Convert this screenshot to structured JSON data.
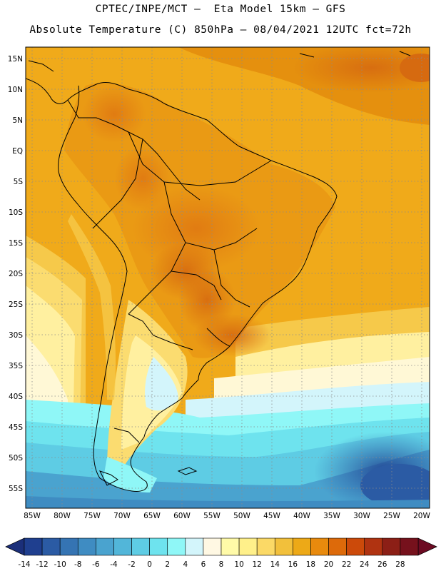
{
  "header": {
    "line1": "CPTEC/INPE/MCT –  Eta Model 15km – GFS",
    "line2": "Absolute Temperature (C) 850hPa – 08/04/2021 12UTC fct=72h"
  },
  "axes": {
    "lat_labels": [
      "15N",
      "10N",
      "5N",
      "EQ",
      "5S",
      "10S",
      "15S",
      "20S",
      "25S",
      "30S",
      "35S",
      "40S",
      "45S",
      "50S",
      "55S"
    ],
    "lon_labels": [
      "85W",
      "80W",
      "75W",
      "70W",
      "65W",
      "60W",
      "55W",
      "50W",
      "45W",
      "40W",
      "35W",
      "30W",
      "25W",
      "20W"
    ]
  },
  "colorbar": {
    "labels": [
      "-14",
      "-12",
      "-10",
      "-8",
      "-6",
      "-4",
      "-2",
      "0",
      "2",
      "4",
      "6",
      "8",
      "10",
      "12",
      "14",
      "16",
      "18",
      "20",
      "22",
      "24",
      "26",
      "28"
    ],
    "colors": [
      "#1f3f8f",
      "#2b5ba4",
      "#3574b3",
      "#3f8cc2",
      "#4aa3cf",
      "#52b6d9",
      "#5ecce4",
      "#6ee3ee",
      "#8ff7f7",
      "#d3f5fb",
      "#fff8e3",
      "#fffaa8",
      "#fff08a",
      "#fbd966",
      "#f2c03b",
      "#eda917",
      "#e88a0d",
      "#dd6a0a",
      "#cc4a0a",
      "#b03311",
      "#8c1f16",
      "#76111c"
    ]
  }
}
